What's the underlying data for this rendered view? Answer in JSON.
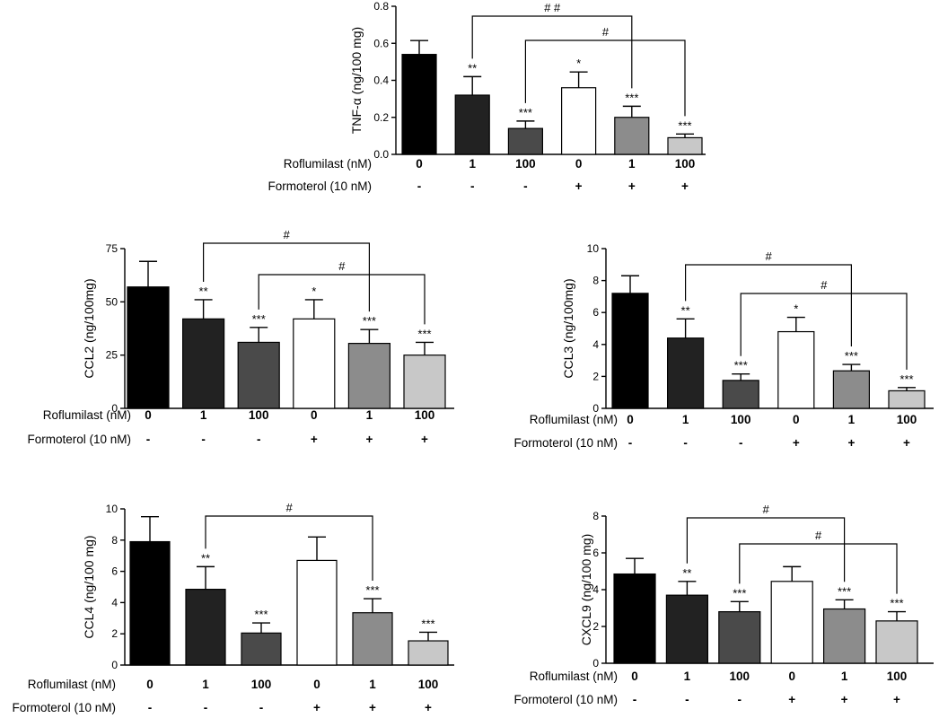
{
  "row_labels": {
    "roflumilast": "Roflumilast (nM)",
    "formoterol": "Formoterol (10 nM)"
  },
  "roflumilast_doses": [
    "0",
    "1",
    "100",
    "0",
    "1",
    "100"
  ],
  "formoterol_signs": [
    "-",
    "-",
    "-",
    "+",
    "+",
    "+"
  ],
  "bar_colors": [
    "#000000",
    "#222222",
    "#4a4a4a",
    "#ffffff",
    "#8c8c8c",
    "#c8c8c8"
  ],
  "chart_data": [
    {
      "id": "tnf",
      "type": "bar",
      "ylabel": "TNF-α (ng/100 mg)",
      "ylim": [
        0,
        0.8
      ],
      "yticks": [
        "0.0",
        "0.2",
        "0.4",
        "0.6",
        "0.8"
      ],
      "values": [
        0.54,
        0.32,
        0.14,
        0.36,
        0.2,
        0.09
      ],
      "errors": [
        0.075,
        0.1,
        0.04,
        0.085,
        0.06,
        0.02
      ],
      "significance": [
        "",
        "**",
        "***",
        "*",
        "***",
        "***"
      ],
      "brackets": [
        {
          "from": 1,
          "to": 4,
          "label": "# #"
        },
        {
          "from": 2,
          "to": 5,
          "label": "#"
        }
      ]
    },
    {
      "id": "ccl2",
      "type": "bar",
      "ylabel": "CCL2 (ng/100mg)",
      "ylim": [
        0,
        75
      ],
      "yticks": [
        "0",
        "25",
        "50",
        "75"
      ],
      "values": [
        57,
        42,
        31,
        42,
        30.5,
        25
      ],
      "errors": [
        12,
        9,
        7,
        9,
        6.5,
        6
      ],
      "significance": [
        "",
        "**",
        "***",
        "*",
        "***",
        "***"
      ],
      "brackets": [
        {
          "from": 1,
          "to": 4,
          "label": "#"
        },
        {
          "from": 2,
          "to": 5,
          "label": "#"
        }
      ]
    },
    {
      "id": "ccl3",
      "type": "bar",
      "ylabel": "CCL3 (ng/100mg)",
      "ylim": [
        0,
        10
      ],
      "yticks": [
        "0",
        "2",
        "4",
        "6",
        "8",
        "10"
      ],
      "values": [
        7.2,
        4.4,
        1.75,
        4.8,
        2.35,
        1.1
      ],
      "errors": [
        1.1,
        1.2,
        0.4,
        0.9,
        0.4,
        0.2
      ],
      "significance": [
        "",
        "**",
        "***",
        "*",
        "***",
        "***"
      ],
      "brackets": [
        {
          "from": 1,
          "to": 4,
          "label": "#"
        },
        {
          "from": 2,
          "to": 5,
          "label": "#"
        }
      ]
    },
    {
      "id": "ccl4",
      "type": "bar",
      "ylabel": "CCL4 (ng/100 mg)",
      "ylim": [
        0,
        10
      ],
      "yticks": [
        "0",
        "2",
        "4",
        "6",
        "8",
        "10"
      ],
      "values": [
        7.9,
        4.85,
        2.05,
        6.7,
        3.35,
        1.55
      ],
      "errors": [
        1.6,
        1.45,
        0.65,
        1.5,
        0.9,
        0.55
      ],
      "significance": [
        "",
        "**",
        "***",
        "",
        "***",
        "***"
      ],
      "brackets": [
        {
          "from": 1,
          "to": 4,
          "label": "#"
        }
      ]
    },
    {
      "id": "cxcl9",
      "type": "bar",
      "ylabel": "CXCL9 (ng/100 mg)",
      "ylim": [
        0,
        8
      ],
      "yticks": [
        "0",
        "2",
        "4",
        "6",
        "8"
      ],
      "values": [
        4.85,
        3.7,
        2.8,
        4.45,
        2.95,
        2.3
      ],
      "errors": [
        0.85,
        0.75,
        0.55,
        0.8,
        0.5,
        0.5
      ],
      "significance": [
        "",
        "**",
        "***",
        "",
        "***",
        "***"
      ],
      "brackets": [
        {
          "from": 1,
          "to": 4,
          "label": "#"
        },
        {
          "from": 2,
          "to": 5,
          "label": "#"
        }
      ]
    }
  ]
}
